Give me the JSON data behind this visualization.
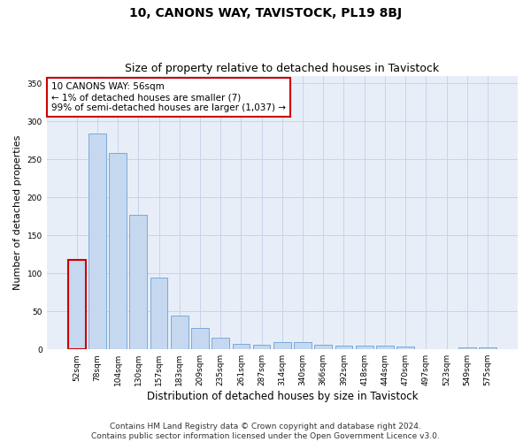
{
  "title": "10, CANONS WAY, TAVISTOCK, PL19 8BJ",
  "subtitle": "Size of property relative to detached houses in Tavistock",
  "xlabel": "Distribution of detached houses by size in Tavistock",
  "ylabel": "Number of detached properties",
  "categories": [
    "52sqm",
    "78sqm",
    "104sqm",
    "130sqm",
    "157sqm",
    "183sqm",
    "209sqm",
    "235sqm",
    "261sqm",
    "287sqm",
    "314sqm",
    "340sqm",
    "366sqm",
    "392sqm",
    "418sqm",
    "444sqm",
    "470sqm",
    "497sqm",
    "523sqm",
    "549sqm",
    "575sqm"
  ],
  "values": [
    118,
    284,
    259,
    177,
    95,
    44,
    28,
    15,
    7,
    6,
    9,
    9,
    6,
    5,
    5,
    5,
    4,
    0,
    0,
    3,
    2
  ],
  "bar_color": "#c5d8f0",
  "bar_edge_color": "#7aaadb",
  "highlight_bar_index": 0,
  "highlight_edge_color": "#cc0000",
  "annotation_box_text": "10 CANONS WAY: 56sqm\n← 1% of detached houses are smaller (7)\n99% of semi-detached houses are larger (1,037) →",
  "annotation_box_edge_color": "#cc0000",
  "ylim": [
    0,
    360
  ],
  "yticks": [
    0,
    50,
    100,
    150,
    200,
    250,
    300,
    350
  ],
  "grid_color": "#c8d4e8",
  "bg_color": "#e8eef8",
  "footer": "Contains HM Land Registry data © Crown copyright and database right 2024.\nContains public sector information licensed under the Open Government Licence v3.0.",
  "title_fontsize": 10,
  "subtitle_fontsize": 9,
  "xlabel_fontsize": 8.5,
  "ylabel_fontsize": 8,
  "annotation_fontsize": 7.5,
  "footer_fontsize": 6.5,
  "tick_fontsize": 6.5
}
